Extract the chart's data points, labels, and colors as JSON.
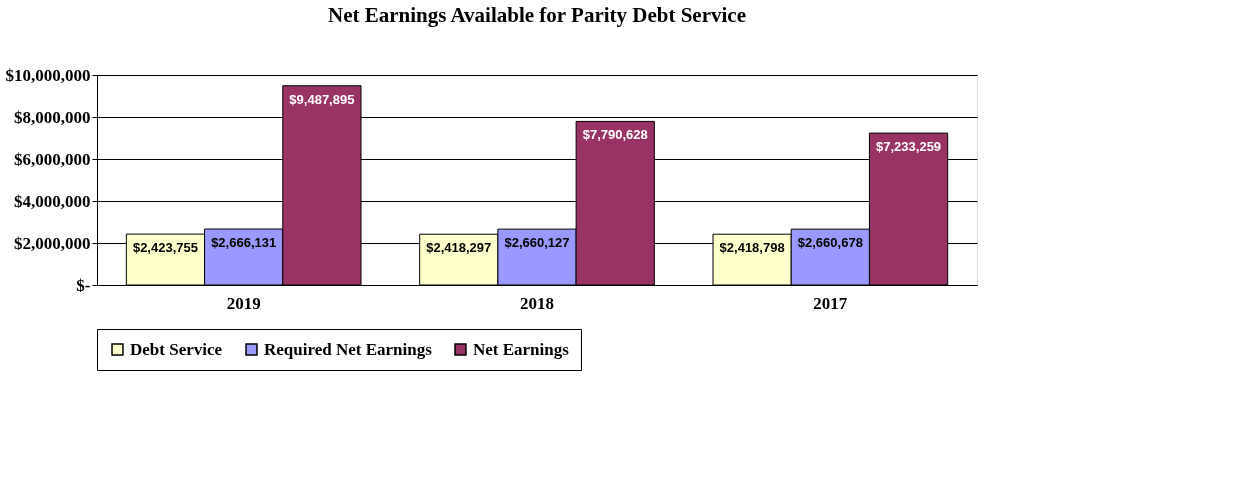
{
  "chart_data": {
    "type": "bar",
    "title": "Net Earnings Available for Parity Debt Service",
    "categories": [
      "2019",
      "2018",
      "2017"
    ],
    "series": [
      {
        "name": "Debt Service",
        "color": "#ffffcc",
        "values": [
          2423755,
          2418297,
          2418798
        ],
        "value_labels": [
          "$2,423,755",
          "$2,418,297",
          "$2,418,798"
        ]
      },
      {
        "name": "Required Net Earnings",
        "color": "#9999ff",
        "values": [
          2666131,
          2660127,
          2660678
        ],
        "value_labels": [
          "$2,666,131",
          "$2,660,127",
          "$2,660,678"
        ]
      },
      {
        "name": "Net Earnings",
        "color": "#993366",
        "values": [
          9487895,
          7790628,
          7233259
        ],
        "value_labels": [
          "$9,487,895",
          "$7,790,628",
          "$7,233,259"
        ]
      }
    ],
    "ylim": [
      0,
      10000000
    ],
    "yticks": [
      {
        "value": 0,
        "label": "$-"
      },
      {
        "value": 2000000,
        "label": "$2,000,000"
      },
      {
        "value": 4000000,
        "label": "$4,000,000"
      },
      {
        "value": 6000000,
        "label": "$6,000,000"
      },
      {
        "value": 8000000,
        "label": "$8,000,000"
      },
      {
        "value": 10000000,
        "label": "$10,000,000"
      }
    ],
    "grid": "y",
    "legend": "bottom"
  }
}
